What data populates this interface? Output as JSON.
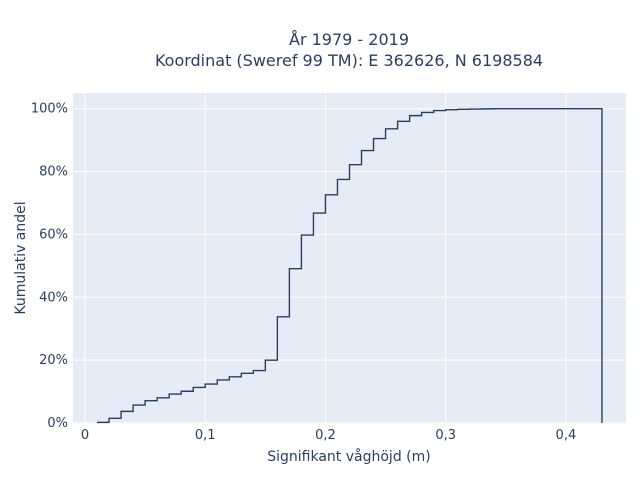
{
  "chart_data": {
    "type": "line",
    "line_shape": "step",
    "title_lines": [
      "År 1979 - 2019",
      "Koordinat (Sweref 99 TM): E 362626, N 6198584"
    ],
    "xlabel": "Signifikant våghöjd (m)",
    "ylabel": "Kumulativ andel",
    "xlim": [
      -0.01,
      0.45
    ],
    "ylim": [
      0,
      1.05
    ],
    "x_ticks": [
      0,
      0.1,
      0.2,
      0.3,
      0.4
    ],
    "x_tick_labels": [
      "0",
      "0,1",
      "0,2",
      "0,3",
      "0,4"
    ],
    "y_ticks": [
      0,
      0.2,
      0.4,
      0.6,
      0.8,
      1.0
    ],
    "y_tick_labels": [
      "0%",
      "20%",
      "40%",
      "60%",
      "80%",
      "100%"
    ],
    "grid": true,
    "colors": {
      "plot_bg": "#e5ecf6",
      "grid": "#ffffff",
      "line": "#2a3f5f"
    },
    "series": [
      {
        "x": [
          0.01,
          0.02,
          0.03,
          0.04,
          0.05,
          0.06,
          0.07,
          0.08,
          0.09,
          0.1,
          0.11,
          0.12,
          0.13,
          0.14,
          0.15,
          0.16,
          0.17,
          0.18,
          0.19,
          0.2,
          0.21,
          0.22,
          0.23,
          0.24,
          0.25,
          0.26,
          0.27,
          0.28,
          0.29,
          0.3,
          0.31,
          0.32,
          0.33,
          0.34,
          0.35,
          0.36,
          0.37,
          0.38,
          0.39,
          0.4,
          0.41,
          0.42,
          0.43,
          0.43
        ],
        "y": [
          0.002,
          0.015,
          0.037,
          0.057,
          0.071,
          0.08,
          0.092,
          0.101,
          0.113,
          0.124,
          0.137,
          0.147,
          0.158,
          0.167,
          0.2,
          0.338,
          0.491,
          0.598,
          0.668,
          0.726,
          0.775,
          0.822,
          0.867,
          0.905,
          0.936,
          0.96,
          0.978,
          0.988,
          0.994,
          0.997,
          0.998,
          0.999,
          0.9995,
          1.0,
          1.0,
          1.0,
          1.0,
          1.0,
          1.0,
          1.0,
          1.0,
          1.0,
          1.0,
          0.0
        ]
      }
    ]
  }
}
